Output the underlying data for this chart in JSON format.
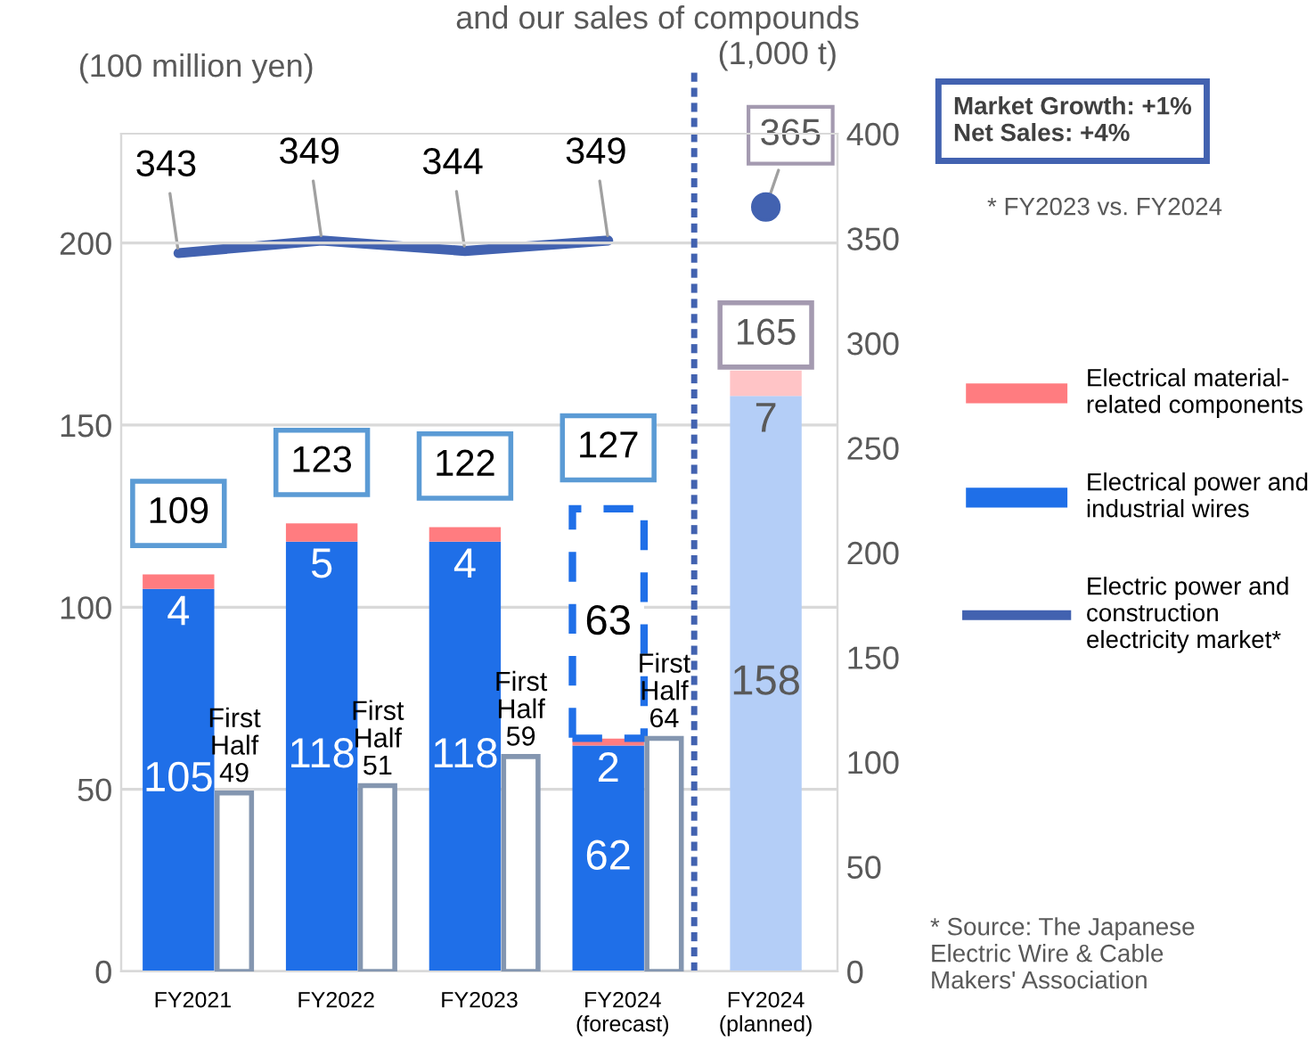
{
  "chart_data": [
    {
      "type": "bar",
      "title": "and our sales of compounds",
      "ylabel": "(100 million yen)",
      "y2label": "(1,000 t)",
      "categories": [
        "FY2021",
        "FY2022",
        "FY2023",
        "FY2024\n(forecast)",
        "FY2024\n(planned)"
      ],
      "stacked": true,
      "ylim": [
        0,
        230
      ],
      "yticks": [
        0,
        50,
        100,
        150,
        200
      ],
      "y2lim": [
        0,
        400
      ],
      "y2ticks": [
        0,
        50,
        100,
        150,
        200,
        250,
        300,
        350,
        400
      ],
      "grid": "y",
      "legend": "right",
      "data_labels": true,
      "totals": [
        "109",
        "123",
        "122",
        "127",
        "165"
      ],
      "series": [
        {
          "name": "Electrical power and\nindustrial wires",
          "colors": [
            "#1f6fe8",
            "#1f6fe8",
            "#1f6fe8",
            "#1f6fe8",
            "#b4cef7"
          ],
          "values": [
            105,
            118,
            118,
            62,
            158
          ]
        },
        {
          "name": "Electrical material-\nrelated components",
          "colors": [
            "#ff7c80",
            "#ff7c80",
            "#ff7c80",
            "#ff7c80",
            "#ffc4c6"
          ],
          "values": [
            4,
            5,
            4,
            2,
            7
          ]
        },
        {
          "color": "#1f6fe8",
          "line_style": "dashed",
          "values": [
            null,
            null,
            null,
            63,
            null
          ]
        },
        {
          "type": "line",
          "axis": "y2",
          "name": "Electric power and\nconstruction\nelectricity market*",
          "color": "#4262b0",
          "values": [
            343,
            349,
            344,
            349,
            null
          ]
        },
        {
          "type": "scatter",
          "axis": "y2",
          "color": "#4262b0",
          "values": [
            null,
            null,
            null,
            null,
            365
          ]
        }
      ],
      "annotations": [
        "Market Growth: +1%\nNet Sales: +4%",
        "* FY2023 vs. FY2024",
        "* Source: The Japanese\nElectric Wire & Cable\nMakers' Association"
      ]
    },
    {
      "type": "bar",
      "categories": [
        null,
        null,
        null,
        null,
        null
      ],
      "ylim": [
        0,
        230
      ],
      "tick_labels": false,
      "series": [
        {
          "color": "#8496b0",
          "values": [
            49,
            51,
            59,
            64,
            null
          ],
          "value_labels": [
            "First\nHalf\n49",
            "First\nHalf\n51",
            "First\nHalf\n59",
            "First\nHalf\n64",
            null
          ]
        }
      ]
    }
  ]
}
